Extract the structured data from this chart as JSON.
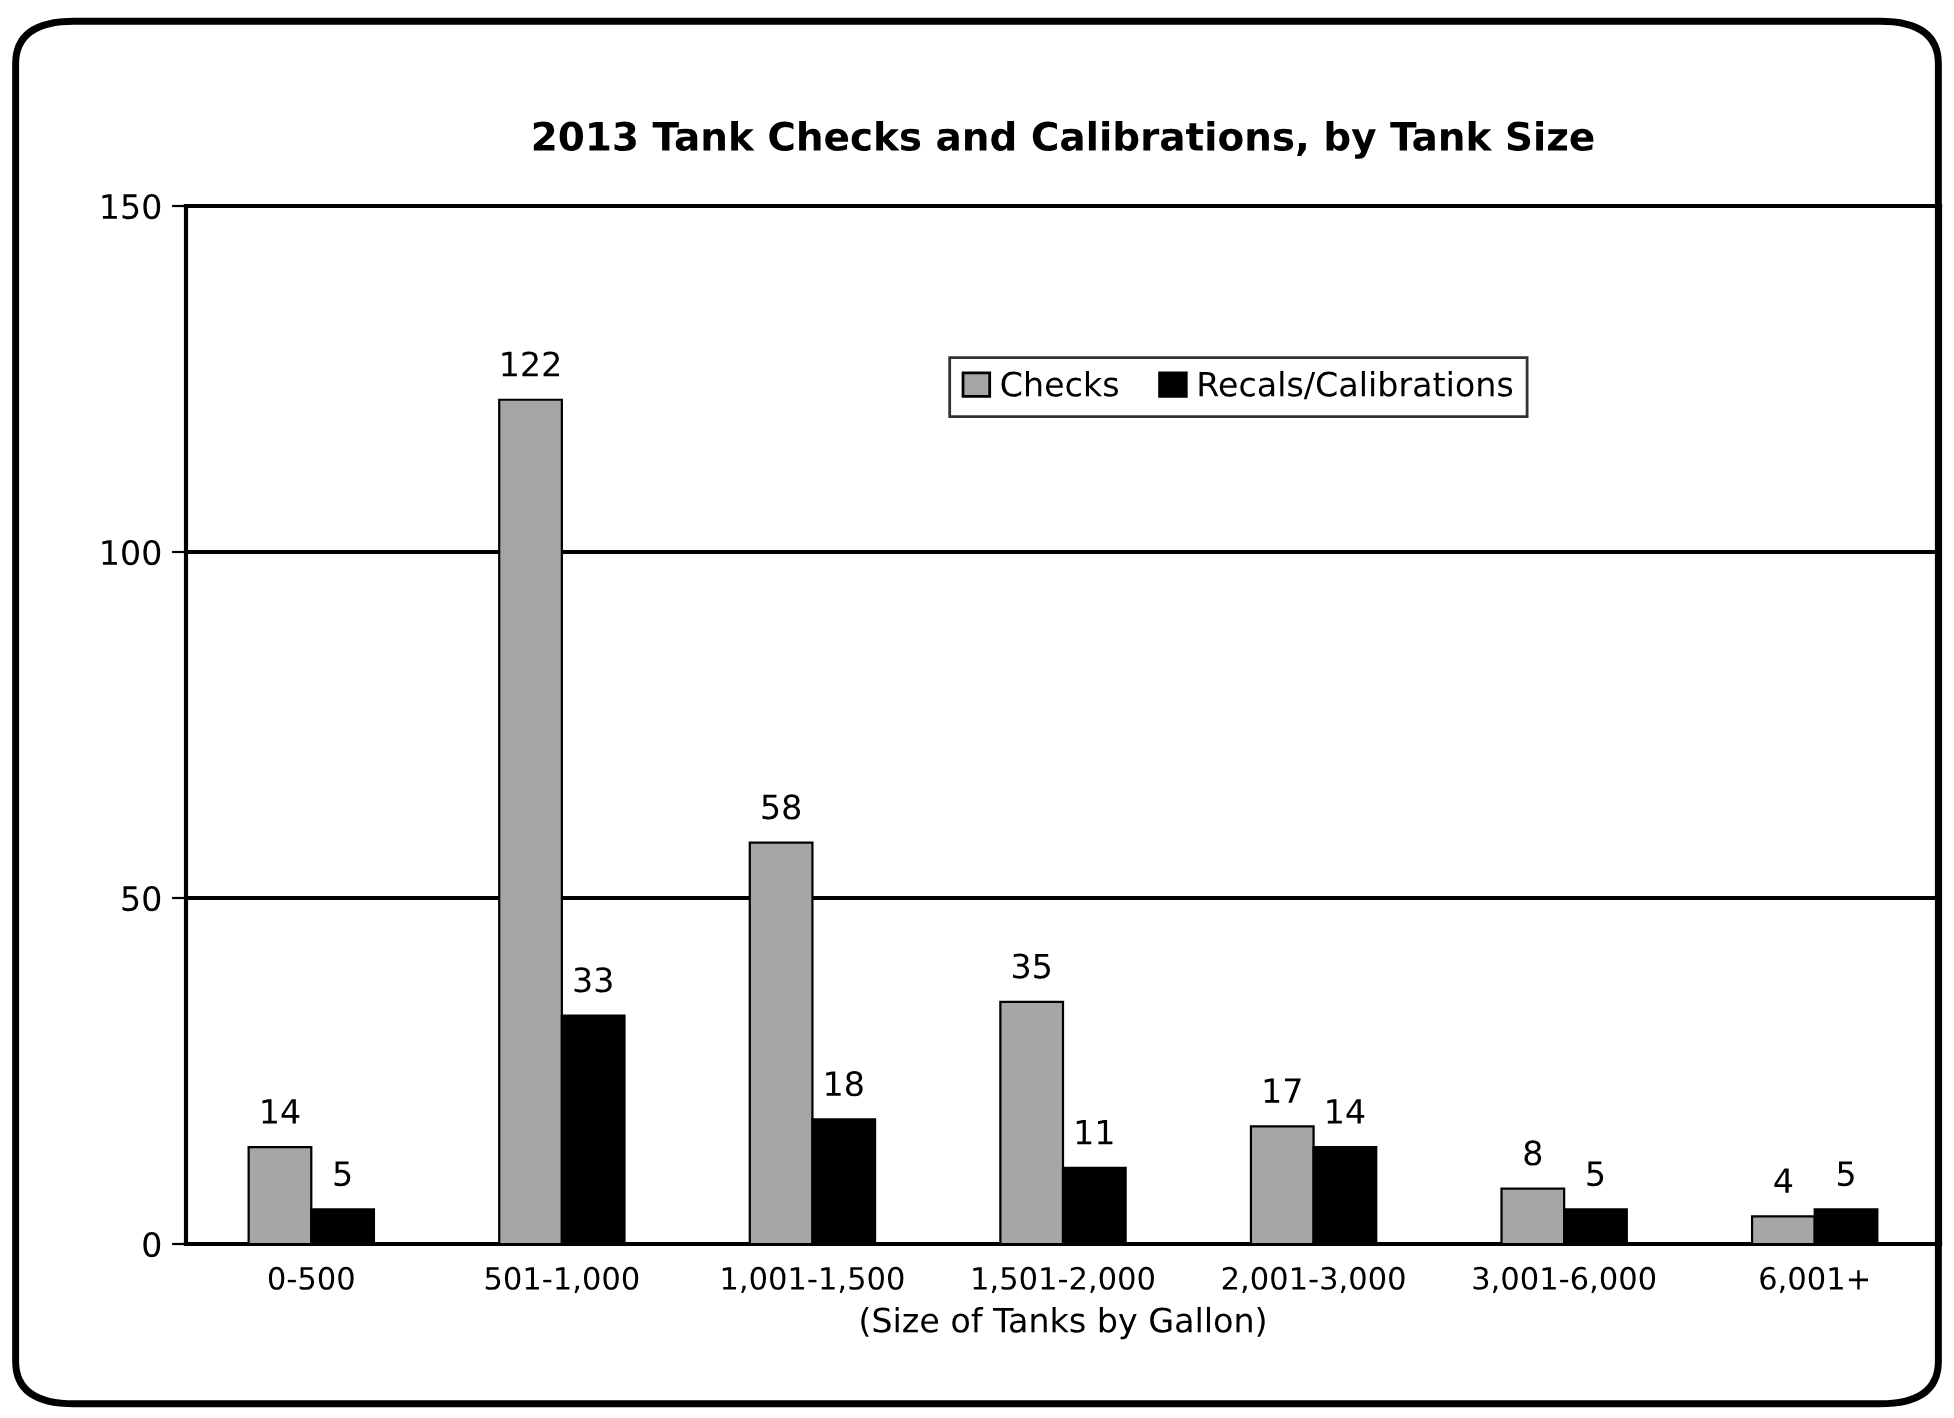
{
  "chart_data": {
    "type": "bar",
    "title": "2013 Tank Checks and Calibrations, by Tank Size",
    "xlabel": "(Size of Tanks by Gallon)",
    "categories": [
      "0-500",
      "501-1,000",
      "1,001-1,500",
      "1,501-2,000",
      "2,001-3,000",
      "3,001-6,000",
      "6,001+"
    ],
    "series": [
      {
        "name": "Checks",
        "color": "#a6a6a6",
        "values": [
          14,
          122,
          58,
          35,
          17,
          8,
          4
        ]
      },
      {
        "name": "Recals/Calibrations",
        "color": "#000000",
        "values": [
          5,
          33,
          18,
          11,
          14,
          5,
          5
        ]
      }
    ],
    "ylim": [
      0,
      150
    ],
    "yticks": [
      0,
      50,
      100,
      150
    ],
    "grid": "y",
    "legend": "top",
    "data_labels": true
  }
}
